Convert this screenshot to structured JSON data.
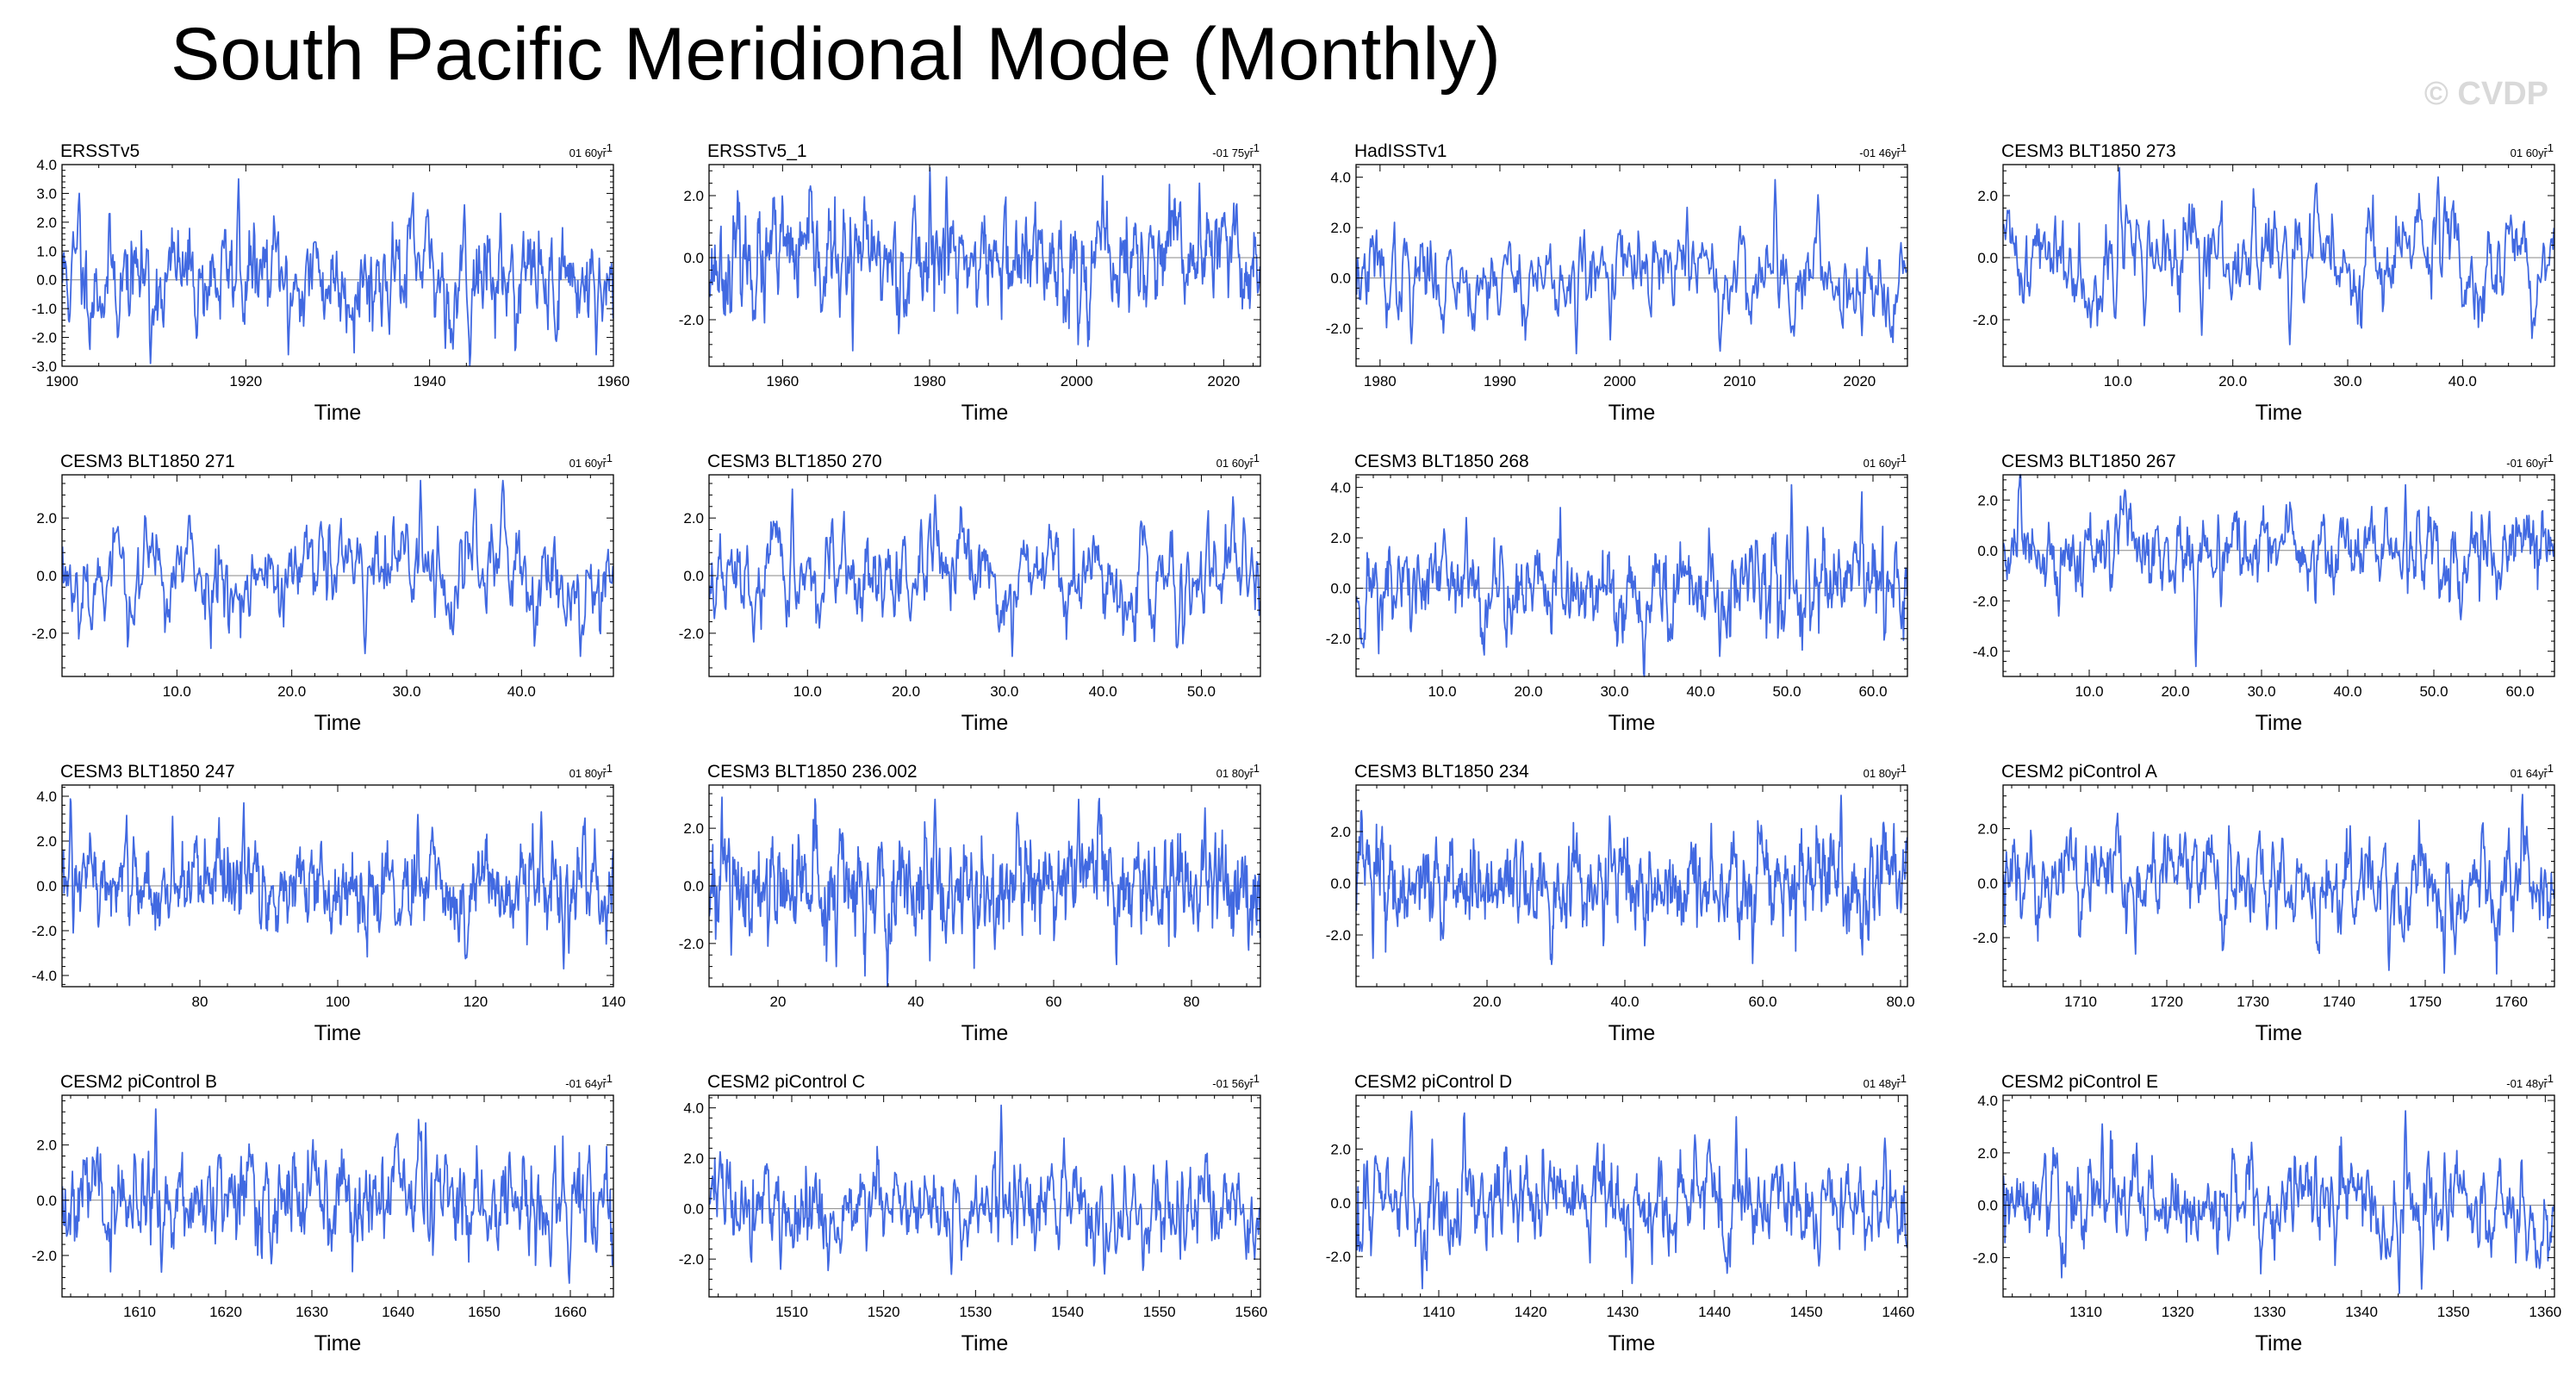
{
  "title": "South Pacific Meridional Mode (Monthly)",
  "watermark": "© CVDP",
  "colors": {
    "line": "#4169E1",
    "axis": "#000000",
    "zero": "#888888"
  },
  "chart_data": [
    {
      "type": "line",
      "title": "ERSSTv5",
      "trend": "01 60yr",
      "xlabel": "Time",
      "xlim": [
        1900,
        1960
      ],
      "ylim": [
        -3.0,
        4.0
      ],
      "xticks": [
        1900,
        1920,
        1940,
        1960
      ],
      "xtick_labels": [
        "1900",
        "1920",
        "1940",
        "1960"
      ],
      "yticks": [
        -3,
        -2,
        -1,
        0,
        1,
        2,
        3,
        4
      ],
      "ytick_labels": [
        "-3.0",
        "-2.0",
        "-1.0",
        "0.0",
        "1.0",
        "2.0",
        "3.0",
        "4.0"
      ],
      "seed": 11,
      "sd": 0.95,
      "spikes": [
        [
          0.03,
          3.0
        ],
        [
          0.16,
          -2.9
        ],
        [
          0.32,
          3.5
        ],
        [
          0.41,
          -2.6
        ],
        [
          0.73,
          2.6
        ],
        [
          0.71,
          -2.4
        ],
        [
          0.97,
          -2.6
        ],
        [
          0.6,
          2.0
        ]
      ]
    },
    {
      "type": "line",
      "title": "ERSSTv5_1",
      "trend": "-01 75yr",
      "xlabel": "Time",
      "xlim": [
        1950,
        2025
      ],
      "ylim": [
        -3.5,
        3.0
      ],
      "xticks": [
        1960,
        1980,
        2000,
        2020
      ],
      "xtick_labels": [
        "1960",
        "1980",
        "2000",
        "2020"
      ],
      "yticks": [
        -2,
        0,
        2
      ],
      "ytick_labels": [
        "-2.0",
        "0.0",
        "2.0"
      ],
      "seed": 23,
      "sd": 0.9,
      "spikes": [
        [
          0.4,
          2.9
        ],
        [
          0.26,
          -3.0
        ],
        [
          0.43,
          2.6
        ],
        [
          0.67,
          -2.8
        ],
        [
          0.89,
          2.4
        ],
        [
          0.1,
          -2.1
        ]
      ]
    },
    {
      "type": "line",
      "title": "HadISSTv1",
      "trend": "-01 46yr",
      "xlabel": "Time",
      "xlim": [
        1978,
        2024
      ],
      "ylim": [
        -3.5,
        4.5
      ],
      "xticks": [
        1980,
        1990,
        2000,
        2010,
        2020
      ],
      "xtick_labels": [
        "1980",
        "1990",
        "2000",
        "2010",
        "2020"
      ],
      "yticks": [
        -2,
        0,
        2,
        4
      ],
      "ytick_labels": [
        "-2.0",
        "0.0",
        "2.0",
        "4.0"
      ],
      "seed": 37,
      "sd": 0.95,
      "spikes": [
        [
          0.76,
          3.9
        ],
        [
          0.4,
          -3.0
        ],
        [
          0.66,
          -2.9
        ],
        [
          0.6,
          2.8
        ],
        [
          0.99,
          1.4
        ],
        [
          0.1,
          -2.6
        ]
      ]
    },
    {
      "type": "line",
      "title": "CESM3 BLT1850 273",
      "trend": "01 60yr",
      "xlabel": "Time",
      "xlim": [
        0,
        48
      ],
      "ylim": [
        -3.5,
        3.0
      ],
      "xticks": [
        10,
        20,
        30,
        40
      ],
      "xtick_labels": [
        "10.0",
        "20.0",
        "30.0",
        "40.0"
      ],
      "yticks": [
        -2,
        0,
        2
      ],
      "ytick_labels": [
        "-2.0",
        "0.0",
        "2.0"
      ],
      "seed": 41,
      "sd": 0.9,
      "spikes": [
        [
          0.21,
          2.9
        ],
        [
          0.52,
          -2.8
        ],
        [
          0.79,
          2.6
        ],
        [
          0.96,
          -2.6
        ],
        [
          0.36,
          -2.5
        ]
      ]
    },
    {
      "type": "line",
      "title": "CESM3 BLT1850 271",
      "trend": "01 60yr",
      "xlabel": "Time",
      "xlim": [
        0,
        48
      ],
      "ylim": [
        -3.5,
        3.5
      ],
      "xticks": [
        10,
        20,
        30,
        40
      ],
      "xtick_labels": [
        "10.0",
        "20.0",
        "30.0",
        "40.0"
      ],
      "yticks": [
        -2,
        0,
        2
      ],
      "ytick_labels": [
        "-2.0",
        "0.0",
        "2.0"
      ],
      "seed": 53,
      "sd": 0.9,
      "spikes": [
        [
          0.65,
          3.3
        ],
        [
          0.8,
          3.3
        ],
        [
          0.75,
          3.0
        ],
        [
          0.55,
          -2.7
        ],
        [
          0.94,
          -2.8
        ],
        [
          0.1,
          1.7
        ]
      ]
    },
    {
      "type": "line",
      "title": "CESM3 BLT1850 270",
      "trend": "01 60yr",
      "xlabel": "Time",
      "xlim": [
        0,
        56
      ],
      "ylim": [
        -3.5,
        3.5
      ],
      "xticks": [
        10,
        20,
        30,
        40,
        50
      ],
      "xtick_labels": [
        "10.0",
        "20.0",
        "30.0",
        "40.0",
        "50.0"
      ],
      "yticks": [
        -2,
        0,
        2
      ],
      "ytick_labels": [
        "-2.0",
        "0.0",
        "2.0"
      ],
      "seed": 67,
      "sd": 0.9,
      "spikes": [
        [
          0.08,
          -2.3
        ],
        [
          0.15,
          3.0
        ],
        [
          0.41,
          2.8
        ],
        [
          0.55,
          -2.8
        ],
        [
          0.85,
          -2.5
        ],
        [
          0.97,
          2.0
        ]
      ]
    },
    {
      "type": "line",
      "title": "CESM3 BLT1850 268",
      "trend": "01 60yr",
      "xlabel": "Time",
      "xlim": [
        0,
        64
      ],
      "ylim": [
        -3.5,
        4.5
      ],
      "xticks": [
        10,
        20,
        30,
        40,
        50,
        60
      ],
      "xtick_labels": [
        "10.0",
        "20.0",
        "30.0",
        "40.0",
        "50.0",
        "60.0"
      ],
      "yticks": [
        -2,
        0,
        2,
        4
      ],
      "ytick_labels": [
        "-2.0",
        "0.0",
        "2.0",
        "4.0"
      ],
      "seed": 71,
      "sd": 1.0,
      "spikes": [
        [
          0.79,
          4.1
        ],
        [
          0.37,
          -2.9
        ],
        [
          0.37,
          3.2
        ],
        [
          0.66,
          -2.7
        ],
        [
          0.2,
          2.8
        ],
        [
          0.99,
          -1.6
        ]
      ]
    },
    {
      "type": "line",
      "title": "CESM3 BLT1850 267",
      "trend": "-01 60yr",
      "xlabel": "Time",
      "xlim": [
        0,
        64
      ],
      "ylim": [
        -5.0,
        3.0
      ],
      "xticks": [
        10,
        20,
        30,
        40,
        50,
        60
      ],
      "xtick_labels": [
        "10.0",
        "20.0",
        "30.0",
        "40.0",
        "50.0",
        "60.0"
      ],
      "yticks": [
        -4,
        -2,
        0,
        2
      ],
      "ytick_labels": [
        "-4.0",
        "-2.0",
        "0.0",
        "2.0"
      ],
      "seed": 83,
      "sd": 0.85,
      "spikes": [
        [
          0.35,
          -4.6
        ],
        [
          0.73,
          2.6
        ],
        [
          0.1,
          -2.6
        ],
        [
          0.22,
          2.4
        ]
      ]
    },
    {
      "type": "line",
      "title": "CESM3 BLT1850 247",
      "trend": "01 80yr",
      "xlabel": "Time",
      "xlim": [
        60,
        140
      ],
      "ylim": [
        -4.5,
        4.5
      ],
      "xticks": [
        80,
        100,
        120,
        140
      ],
      "xtick_labels": [
        "80",
        "100",
        "120",
        "140"
      ],
      "yticks": [
        -4,
        -2,
        0,
        2,
        4
      ],
      "ytick_labels": [
        "-4.0",
        "-2.0",
        "0.0",
        "2.0",
        "4.0"
      ],
      "seed": 97,
      "sd": 1.05,
      "spikes": [
        [
          0.33,
          3.7
        ],
        [
          0.87,
          3.3
        ],
        [
          0.91,
          -3.7
        ],
        [
          0.92,
          -3.0
        ],
        [
          0.2,
          3.1
        ],
        [
          0.02,
          -2.1
        ]
      ]
    },
    {
      "type": "line",
      "title": "CESM3 BLT1850 236.002",
      "trend": "01 80yr",
      "xlabel": "Time",
      "xlim": [
        10,
        90
      ],
      "ylim": [
        -3.5,
        3.5
      ],
      "xticks": [
        20,
        40,
        60,
        80
      ],
      "xtick_labels": [
        "20",
        "40",
        "60",
        "80"
      ],
      "yticks": [
        -2,
        0,
        2
      ],
      "ytick_labels": [
        "-2.0",
        "0.0",
        "2.0"
      ],
      "seed": 101,
      "sd": 0.95,
      "spikes": [
        [
          0.04,
          -2.4
        ],
        [
          0.23,
          -2.8
        ],
        [
          0.4,
          -2.6
        ],
        [
          0.67,
          3.0
        ],
        [
          0.41,
          3.0
        ],
        [
          0.9,
          2.7
        ]
      ]
    },
    {
      "type": "line",
      "title": "CESM3 BLT1850 234",
      "trend": "01 80yr",
      "xlabel": "Time",
      "xlim": [
        1,
        81
      ],
      "ylim": [
        -4.0,
        3.8
      ],
      "xticks": [
        20,
        40,
        60,
        80
      ],
      "xtick_labels": [
        "20.0",
        "40.0",
        "60.0",
        "80.0"
      ],
      "yticks": [
        -2,
        0,
        2
      ],
      "ytick_labels": [
        "-2.0",
        "0.0",
        "2.0"
      ],
      "seed": 113,
      "sd": 0.95,
      "spikes": [
        [
          0.88,
          3.4
        ],
        [
          0.72,
          -3.1
        ],
        [
          0.03,
          -2.9
        ],
        [
          0.46,
          2.6
        ],
        [
          0.93,
          -2.2
        ]
      ]
    },
    {
      "type": "line",
      "title": "CESM2 piControl A",
      "trend": "01 64yr",
      "xlabel": "Time",
      "xlim": [
        1701,
        1765
      ],
      "ylim": [
        -3.8,
        3.6
      ],
      "xticks": [
        1710,
        1720,
        1730,
        1740,
        1750,
        1760
      ],
      "xtick_labels": [
        "1710",
        "1720",
        "1730",
        "1740",
        "1750",
        "1760"
      ],
      "yticks": [
        -2,
        0,
        2
      ],
      "ytick_labels": [
        "-2.0",
        "0.0",
        "2.0"
      ],
      "seed": 127,
      "sd": 0.95,
      "spikes": [
        [
          0.7,
          -3.2
        ],
        [
          0.8,
          -3.3
        ],
        [
          0.41,
          2.1
        ],
        [
          0.63,
          2.1
        ],
        [
          0.02,
          1.6
        ],
        [
          0.24,
          -2.6
        ]
      ]
    },
    {
      "type": "line",
      "title": "CESM2 piControl B",
      "trend": "-01 64yr",
      "xlabel": "Time",
      "xlim": [
        1601,
        1665
      ],
      "ylim": [
        -3.5,
        3.8
      ],
      "xticks": [
        1610,
        1620,
        1630,
        1640,
        1650,
        1660
      ],
      "xtick_labels": [
        "1610",
        "1620",
        "1630",
        "1640",
        "1650",
        "1660"
      ],
      "yticks": [
        -2,
        0,
        2
      ],
      "ytick_labels": [
        "-2.0",
        "0.0",
        "2.0"
      ],
      "seed": 131,
      "sd": 0.95,
      "spikes": [
        [
          0.17,
          3.3
        ],
        [
          0.18,
          -2.6
        ],
        [
          0.92,
          -3.0
        ],
        [
          0.66,
          2.8
        ],
        [
          0.38,
          -2.3
        ]
      ]
    },
    {
      "type": "line",
      "title": "CESM2 piControl C",
      "trend": "-01 56yr",
      "xlabel": "Time",
      "xlim": [
        1501,
        1561
      ],
      "ylim": [
        -3.5,
        4.5
      ],
      "xticks": [
        1510,
        1520,
        1530,
        1540,
        1550,
        1560
      ],
      "xtick_labels": [
        "1510",
        "1520",
        "1530",
        "1540",
        "1550",
        "1560"
      ],
      "yticks": [
        -2,
        0,
        2,
        4
      ],
      "ytick_labels": [
        "-2.0",
        "0.0",
        "2.0",
        "4.0"
      ],
      "seed": 149,
      "sd": 0.9,
      "spikes": [
        [
          0.53,
          4.1
        ],
        [
          0.44,
          -2.6
        ],
        [
          0.99,
          -2.0
        ],
        [
          0.83,
          1.9
        ],
        [
          0.13,
          -2.4
        ]
      ]
    },
    {
      "type": "line",
      "title": "CESM2 piControl D",
      "trend": "01 48yr",
      "xlabel": "Time",
      "xlim": [
        1401,
        1461
      ],
      "ylim": [
        -3.5,
        4.0
      ],
      "xticks": [
        1410,
        1420,
        1430,
        1440,
        1450,
        1460
      ],
      "xtick_labels": [
        "1410",
        "1420",
        "1430",
        "1440",
        "1450",
        "1460"
      ],
      "yticks": [
        -2,
        0,
        2
      ],
      "ytick_labels": [
        "-2.0",
        "0.0",
        "2.0"
      ],
      "seed": 157,
      "sd": 0.95,
      "spikes": [
        [
          0.1,
          3.4
        ],
        [
          0.5,
          -3.0
        ],
        [
          0.69,
          3.2
        ],
        [
          0.96,
          2.4
        ],
        [
          0.01,
          -1.8
        ]
      ]
    },
    {
      "type": "line",
      "title": "CESM2 piControl E",
      "trend": "-01 48yr",
      "xlabel": "Time",
      "xlim": [
        1301,
        1361
      ],
      "ylim": [
        -3.5,
        4.2
      ],
      "xticks": [
        1310,
        1320,
        1330,
        1340,
        1350,
        1360
      ],
      "xtick_labels": [
        "1310",
        "1320",
        "1330",
        "1340",
        "1350",
        "1360"
      ],
      "yticks": [
        -2,
        0,
        2,
        4
      ],
      "ytick_labels": [
        "-2.0",
        "0.0",
        "2.0",
        "4.0"
      ],
      "seed": 163,
      "sd": 0.95,
      "spikes": [
        [
          0.18,
          3.1
        ],
        [
          0.73,
          3.6
        ],
        [
          0.76,
          -3.2
        ],
        [
          0.93,
          -2.2
        ],
        [
          0.45,
          2.4
        ]
      ]
    }
  ]
}
